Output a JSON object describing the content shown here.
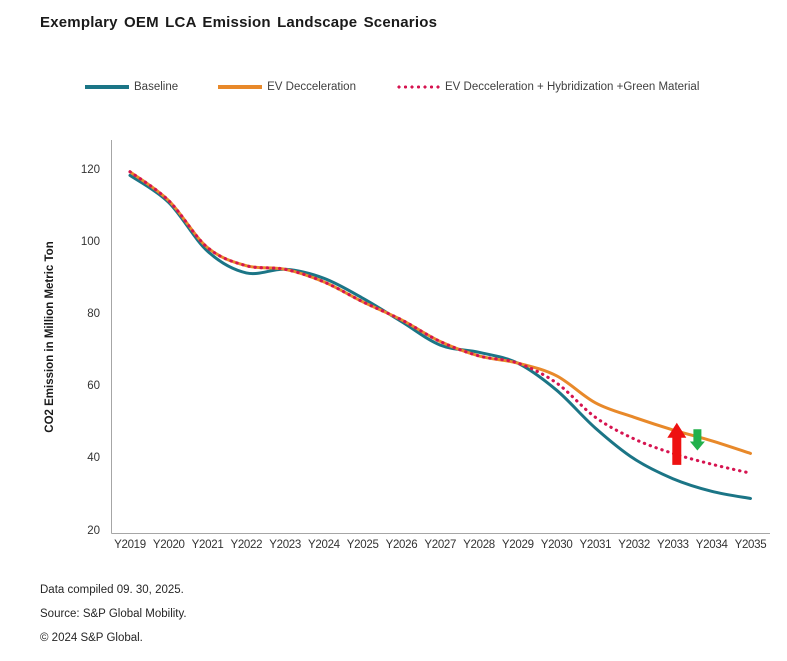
{
  "title": "Exemplary OEM LCA Emission Landscape Scenarios",
  "legend": {
    "items": [
      {
        "label": "Baseline"
      },
      {
        "label": "EV Decceleration"
      },
      {
        "label": "EV Decceleration + Hybridization +Green Material"
      }
    ]
  },
  "chart_data": {
    "type": "line",
    "title": "Exemplary OEM LCA Emission Landscape Scenarios",
    "xlabel": "",
    "ylabel": "CO2 Emission in Million Metric Ton",
    "ylim": [
      20,
      125
    ],
    "yticks": [
      20,
      40,
      60,
      80,
      100,
      120
    ],
    "grid": false,
    "legend_position": "top",
    "categories": [
      "Y2019",
      "Y2020",
      "Y2021",
      "Y2022",
      "Y2023",
      "Y2024",
      "Y2025",
      "Y2026",
      "Y2027",
      "Y2028",
      "Y2029",
      "Y2030",
      "Y2031",
      "Y2032",
      "Y2033",
      "Y2034",
      "Y2035"
    ],
    "series": [
      {
        "name": "Baseline",
        "color": "#1b7586",
        "style": "solid",
        "values": [
          118.5,
          111,
          97.5,
          91.5,
          92.5,
          90,
          84.5,
          78,
          71.5,
          69.5,
          66.5,
          59,
          48.5,
          40,
          34.5,
          31,
          29
        ]
      },
      {
        "name": "EV Decceleration",
        "color": "#e8892a",
        "style": "solid",
        "values": [
          119.5,
          111.5,
          98.5,
          93.5,
          92.5,
          89,
          83.5,
          78.5,
          72.5,
          68.5,
          66.5,
          63,
          55.5,
          51.5,
          48,
          45,
          41.5
        ]
      },
      {
        "name": "EV Decceleration + Hybridization +Green Material",
        "color": "#d61450",
        "style": "dotted",
        "values": [
          119.5,
          111.5,
          98.5,
          93.5,
          92.5,
          89,
          83.5,
          78.5,
          72.5,
          68.5,
          66.5,
          61,
          51.5,
          45.5,
          41.5,
          38.5,
          36
        ]
      }
    ],
    "annotations": [
      {
        "type": "arrow-up",
        "color": "#ee1111",
        "x_index": 14.1,
        "value_from": 38.3,
        "value_to": 50.0
      },
      {
        "type": "arrow-down",
        "color": "#22b14c",
        "x_index": 14.63,
        "value_from": 48.2,
        "value_to": 42.3
      }
    ]
  },
  "axes": {
    "axis_color": "#a6a6a6"
  },
  "footer": {
    "line1": "Data compiled 09. 30, 2025.",
    "line2": "Source: S&P Global Mobility.",
    "line3": "© 2024 S&P Global."
  }
}
